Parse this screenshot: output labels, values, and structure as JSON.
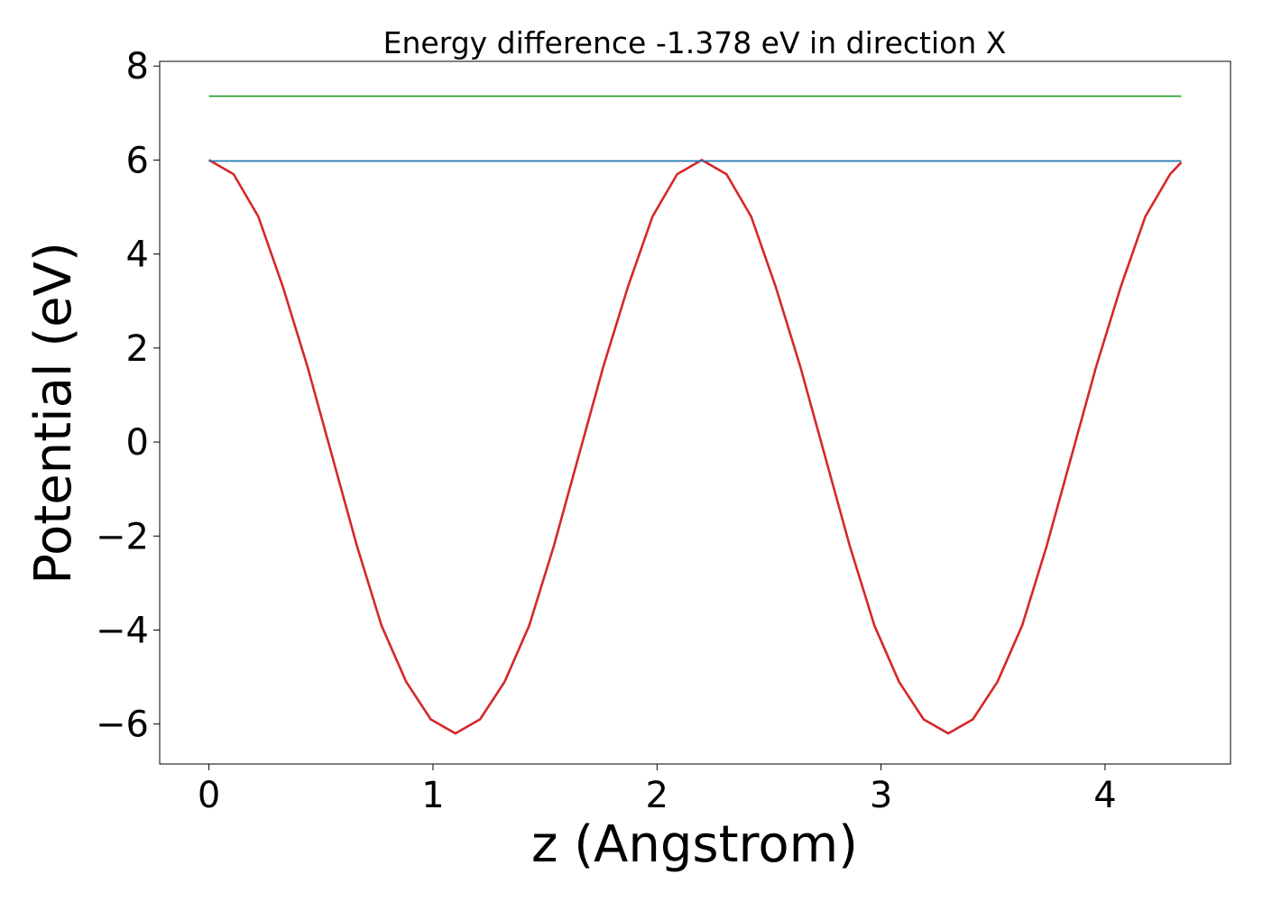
{
  "chart_data": {
    "type": "line",
    "title": "Energy difference -1.378 eV in direction X",
    "xlabel": "z (Angstrom)",
    "ylabel": "Potential (eV)",
    "xlim": [
      -0.22,
      4.56
    ],
    "ylim": [
      -6.85,
      8.1
    ],
    "xticks": [
      0,
      1,
      2,
      3,
      4
    ],
    "xtick_labels": [
      "0",
      "1",
      "2",
      "3",
      "4"
    ],
    "yticks": [
      -6,
      -4,
      -2,
      0,
      2,
      4,
      6,
      8
    ],
    "ytick_labels": [
      "−6",
      "−4",
      "−2",
      "0",
      "2",
      "4",
      "6",
      "8"
    ],
    "grid": false,
    "legend": "none",
    "series": [
      {
        "color": "#d62728",
        "x": [
          0.0,
          0.11,
          0.22,
          0.33,
          0.44,
          0.55,
          0.66,
          0.77,
          0.88,
          0.99,
          1.1,
          1.21,
          1.32,
          1.43,
          1.54,
          1.65,
          1.76,
          1.87,
          1.98,
          2.09,
          2.2,
          2.31,
          2.42,
          2.53,
          2.64,
          2.75,
          2.86,
          2.97,
          3.08,
          3.19,
          3.3,
          3.41,
          3.52,
          3.63,
          3.74,
          3.85,
          3.96,
          4.07,
          4.18,
          4.29,
          4.34
        ],
        "y": [
          6.0,
          5.7,
          4.8,
          3.3,
          1.6,
          -0.3,
          -2.2,
          -3.9,
          -5.1,
          -5.9,
          -6.2,
          -5.9,
          -5.1,
          -3.9,
          -2.2,
          -0.3,
          1.6,
          3.3,
          4.8,
          5.7,
          6.0,
          5.7,
          4.8,
          3.3,
          1.6,
          -0.3,
          -2.2,
          -3.9,
          -5.1,
          -5.9,
          -6.2,
          -5.9,
          -5.1,
          -3.9,
          -2.2,
          -0.3,
          1.6,
          3.3,
          4.8,
          5.7,
          5.95
        ]
      },
      {
        "color": "#1f77b4",
        "x": [
          0.0,
          4.34
        ],
        "y": [
          5.98,
          5.98
        ]
      },
      {
        "color": "#2ca02c",
        "x": [
          0.0,
          4.34
        ],
        "y": [
          7.36,
          7.36
        ]
      }
    ]
  }
}
